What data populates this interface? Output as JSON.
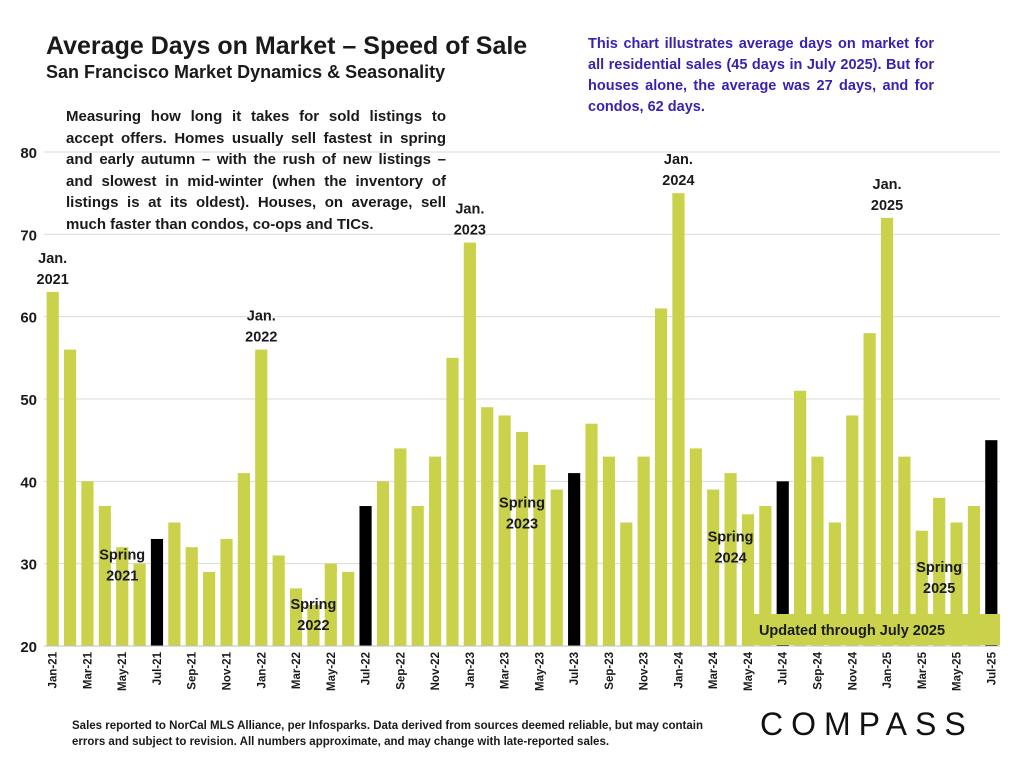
{
  "header": {
    "title": "Average Days on Market – Speed of Sale",
    "subtitle": "San Francisco Market Dynamics & Seasonality"
  },
  "note": "This chart illustrates average days on market for all residential sales (45 days in July 2025). But for houses alone, the average was 27 days, and for condos, 62 days.",
  "description": "Measuring how long it takes for sold listings to accept offers. Homes usually sell fastest in spring and early autumn – with the rush of new listings – and slowest in mid-winter (when the inventory of listings is at its oldest). Houses, on average, sell much faster than condos, co-ops and TICs.",
  "footer": "Sales reported to NorCal MLS Alliance, per Infosparks. Data derived from sources deemed reliable, but may contain errors and subject to revision. All numbers approximate, and may change with late-reported sales.",
  "logo_text": "COMPASS",
  "updated_label": "Updated through July 2025",
  "colors": {
    "bar": "#c9d24a",
    "highlight": "#000000",
    "note_text": "#3a1fb0",
    "updated_box": "#c9d24a"
  },
  "chart_data": {
    "type": "bar",
    "categories": [
      "Jan-21",
      "Feb-21",
      "Mar-21",
      "Apr-21",
      "May-21",
      "Jun-21",
      "Jul-21",
      "Aug-21",
      "Sep-21",
      "Oct-21",
      "Nov-21",
      "Dec-21",
      "Jan-22",
      "Feb-22",
      "Mar-22",
      "Apr-22",
      "May-22",
      "Jun-22",
      "Jul-22",
      "Aug-22",
      "Sep-22",
      "Oct-22",
      "Nov-22",
      "Dec-22",
      "Jan-23",
      "Feb-23",
      "Mar-23",
      "Apr-23",
      "May-23",
      "Jun-23",
      "Jul-23",
      "Aug-23",
      "Sep-23",
      "Oct-23",
      "Nov-23",
      "Dec-23",
      "Jan-24",
      "Feb-24",
      "Mar-24",
      "Apr-24",
      "May-24",
      "Jun-24",
      "Jul-24",
      "Aug-24",
      "Sep-24",
      "Oct-24",
      "Nov-24",
      "Dec-24",
      "Jan-25",
      "Feb-25",
      "Mar-25",
      "Apr-25",
      "May-25",
      "Jun-25",
      "Jul-25"
    ],
    "values": [
      63,
      56,
      40,
      37,
      32,
      30,
      33,
      35,
      32,
      29,
      33,
      41,
      56,
      31,
      27,
      25,
      30,
      29,
      37,
      40,
      44,
      37,
      43,
      55,
      69,
      49,
      48,
      46,
      42,
      39,
      41,
      47,
      43,
      35,
      43,
      61,
      75,
      44,
      39,
      41,
      36,
      37,
      40,
      51,
      43,
      35,
      48,
      58,
      72,
      43,
      34,
      38,
      35,
      37,
      45
    ],
    "highlight_categories": [
      "Jul-21",
      "Jul-22",
      "Jul-23",
      "Jul-24",
      "Jul-25"
    ],
    "tick_labels": [
      "Jan-21",
      "Mar-21",
      "May-21",
      "Jul-21",
      "Sep-21",
      "Nov-21",
      "Jan-22",
      "Mar-22",
      "May-22",
      "Jul-22",
      "Sep-22",
      "Nov-22",
      "Jan-23",
      "Mar-23",
      "May-23",
      "Jul-23",
      "Sep-23",
      "Nov-23",
      "Jan-24",
      "Mar-24",
      "May-24",
      "Jul-24",
      "Sep-24",
      "Nov-24",
      "Jan-25",
      "Mar-25",
      "May-25",
      "Jul-25"
    ],
    "ylim": [
      20,
      80
    ],
    "yticks": [
      20,
      30,
      40,
      50,
      60,
      70,
      80
    ],
    "grid": true,
    "annotations": [
      {
        "category": "Jan-21",
        "lines": [
          "Jan.",
          "2021"
        ]
      },
      {
        "category": "Jan-22",
        "lines": [
          "Jan.",
          "2022"
        ]
      },
      {
        "category": "Jan-23",
        "lines": [
          "Jan.",
          "2023"
        ]
      },
      {
        "category": "Jan-24",
        "lines": [
          "Jan.",
          "2024"
        ]
      },
      {
        "category": "Jan-25",
        "lines": [
          "Jan.",
          "2025"
        ]
      },
      {
        "category": "May-21",
        "lines": [
          "Spring",
          "2021"
        ],
        "inside": true,
        "y": 30.5
      },
      {
        "category": "Apr-22",
        "lines": [
          "Spring",
          "2022"
        ],
        "inside": true,
        "y": 24.5
      },
      {
        "category": "Apr-23",
        "lines": [
          "Spring",
          "2023"
        ],
        "inside": true,
        "y": 36.8
      },
      {
        "category": "Apr-24",
        "lines": [
          "Spring",
          "2024"
        ],
        "inside": true,
        "y": 32.7
      },
      {
        "category": "Apr-25",
        "lines": [
          "Spring",
          "2025"
        ],
        "inside": true,
        "y": 29.0
      }
    ]
  }
}
